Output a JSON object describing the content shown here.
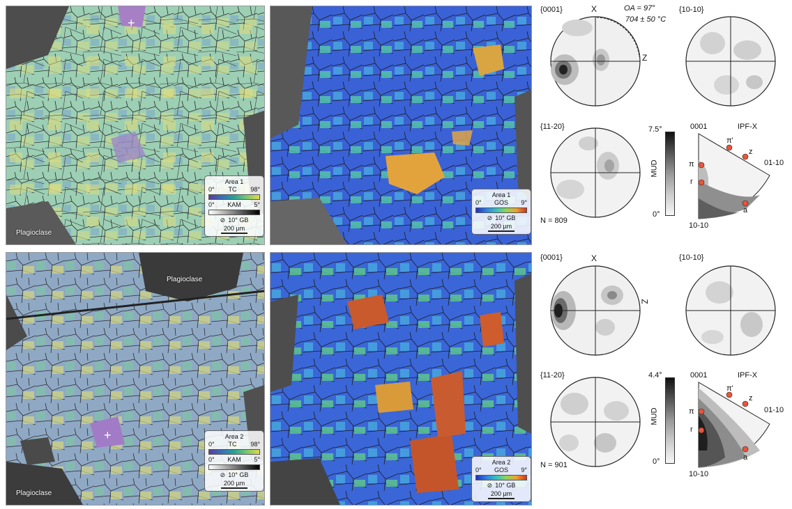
{
  "area1": {
    "tc_legend": {
      "title": "Area 1",
      "min": "0°",
      "label": "TC",
      "max": "98°"
    },
    "kam_legend": {
      "min": "0°",
      "label": "KAM",
      "max": "5°"
    },
    "gb": "10° GB",
    "scale": "200 µm",
    "gos_legend": {
      "title": "Area 1",
      "min": "0°",
      "label": "GOS",
      "max": "9°"
    },
    "plagioclase": [
      "Plagioclase"
    ],
    "pf_labels": {
      "c": "{0001}",
      "m": "{10-10}",
      "a": "{11-20}",
      "x": "X",
      "z": "Z"
    },
    "oa": "OA = 97°",
    "temp": "704 ± 50 °C",
    "n": "N = 809",
    "mud": {
      "max": "7.5°",
      "label": "MUD",
      "min": "0°"
    },
    "ipf": {
      "title": "IPF-X",
      "c": "0001",
      "m1": "01-10",
      "m2": "10-10",
      "pi2": "π'",
      "z": "z",
      "pi": "π",
      "r": "r",
      "a": "a"
    }
  },
  "area2": {
    "tc_legend": {
      "title": "Area 2",
      "min": "0°",
      "label": "TC",
      "max": "98°"
    },
    "kam_legend": {
      "min": "0°",
      "label": "KAM",
      "max": "5°"
    },
    "gb": "10° GB",
    "scale": "200 µm",
    "gos_legend": {
      "title": "Area 2",
      "min": "0°",
      "label": "GOS",
      "max": "9°"
    },
    "plagioclase": [
      "Plagioclase",
      "Plagioclase"
    ],
    "pf_labels": {
      "c": "{0001}",
      "m": "{10-10}",
      "a": "{11-20}",
      "x": "X",
      "z": "Z"
    },
    "n": "N = 901",
    "mud": {
      "max": "4.4°",
      "label": "MUD",
      "min": "0°"
    },
    "ipf": {
      "title": "IPF-X",
      "c": "0001",
      "m1": "01-10",
      "m2": "10-10",
      "pi2": "π'",
      "z": "z",
      "pi": "π",
      "r": "r",
      "a": "a"
    }
  },
  "colors": {
    "tc_ramp": [
      "#5e3c99",
      "#3b6fb6",
      "#2aa198",
      "#7cc86e",
      "#e0d94a"
    ],
    "gos_ramp": [
      "#1f2fbf",
      "#2f7fe0",
      "#38c0c0",
      "#8fd35a",
      "#f0a030",
      "#d0341f"
    ],
    "kam_ramp": [
      "#ffffff",
      "#000000"
    ],
    "ipf_point": "#e8553a"
  }
}
